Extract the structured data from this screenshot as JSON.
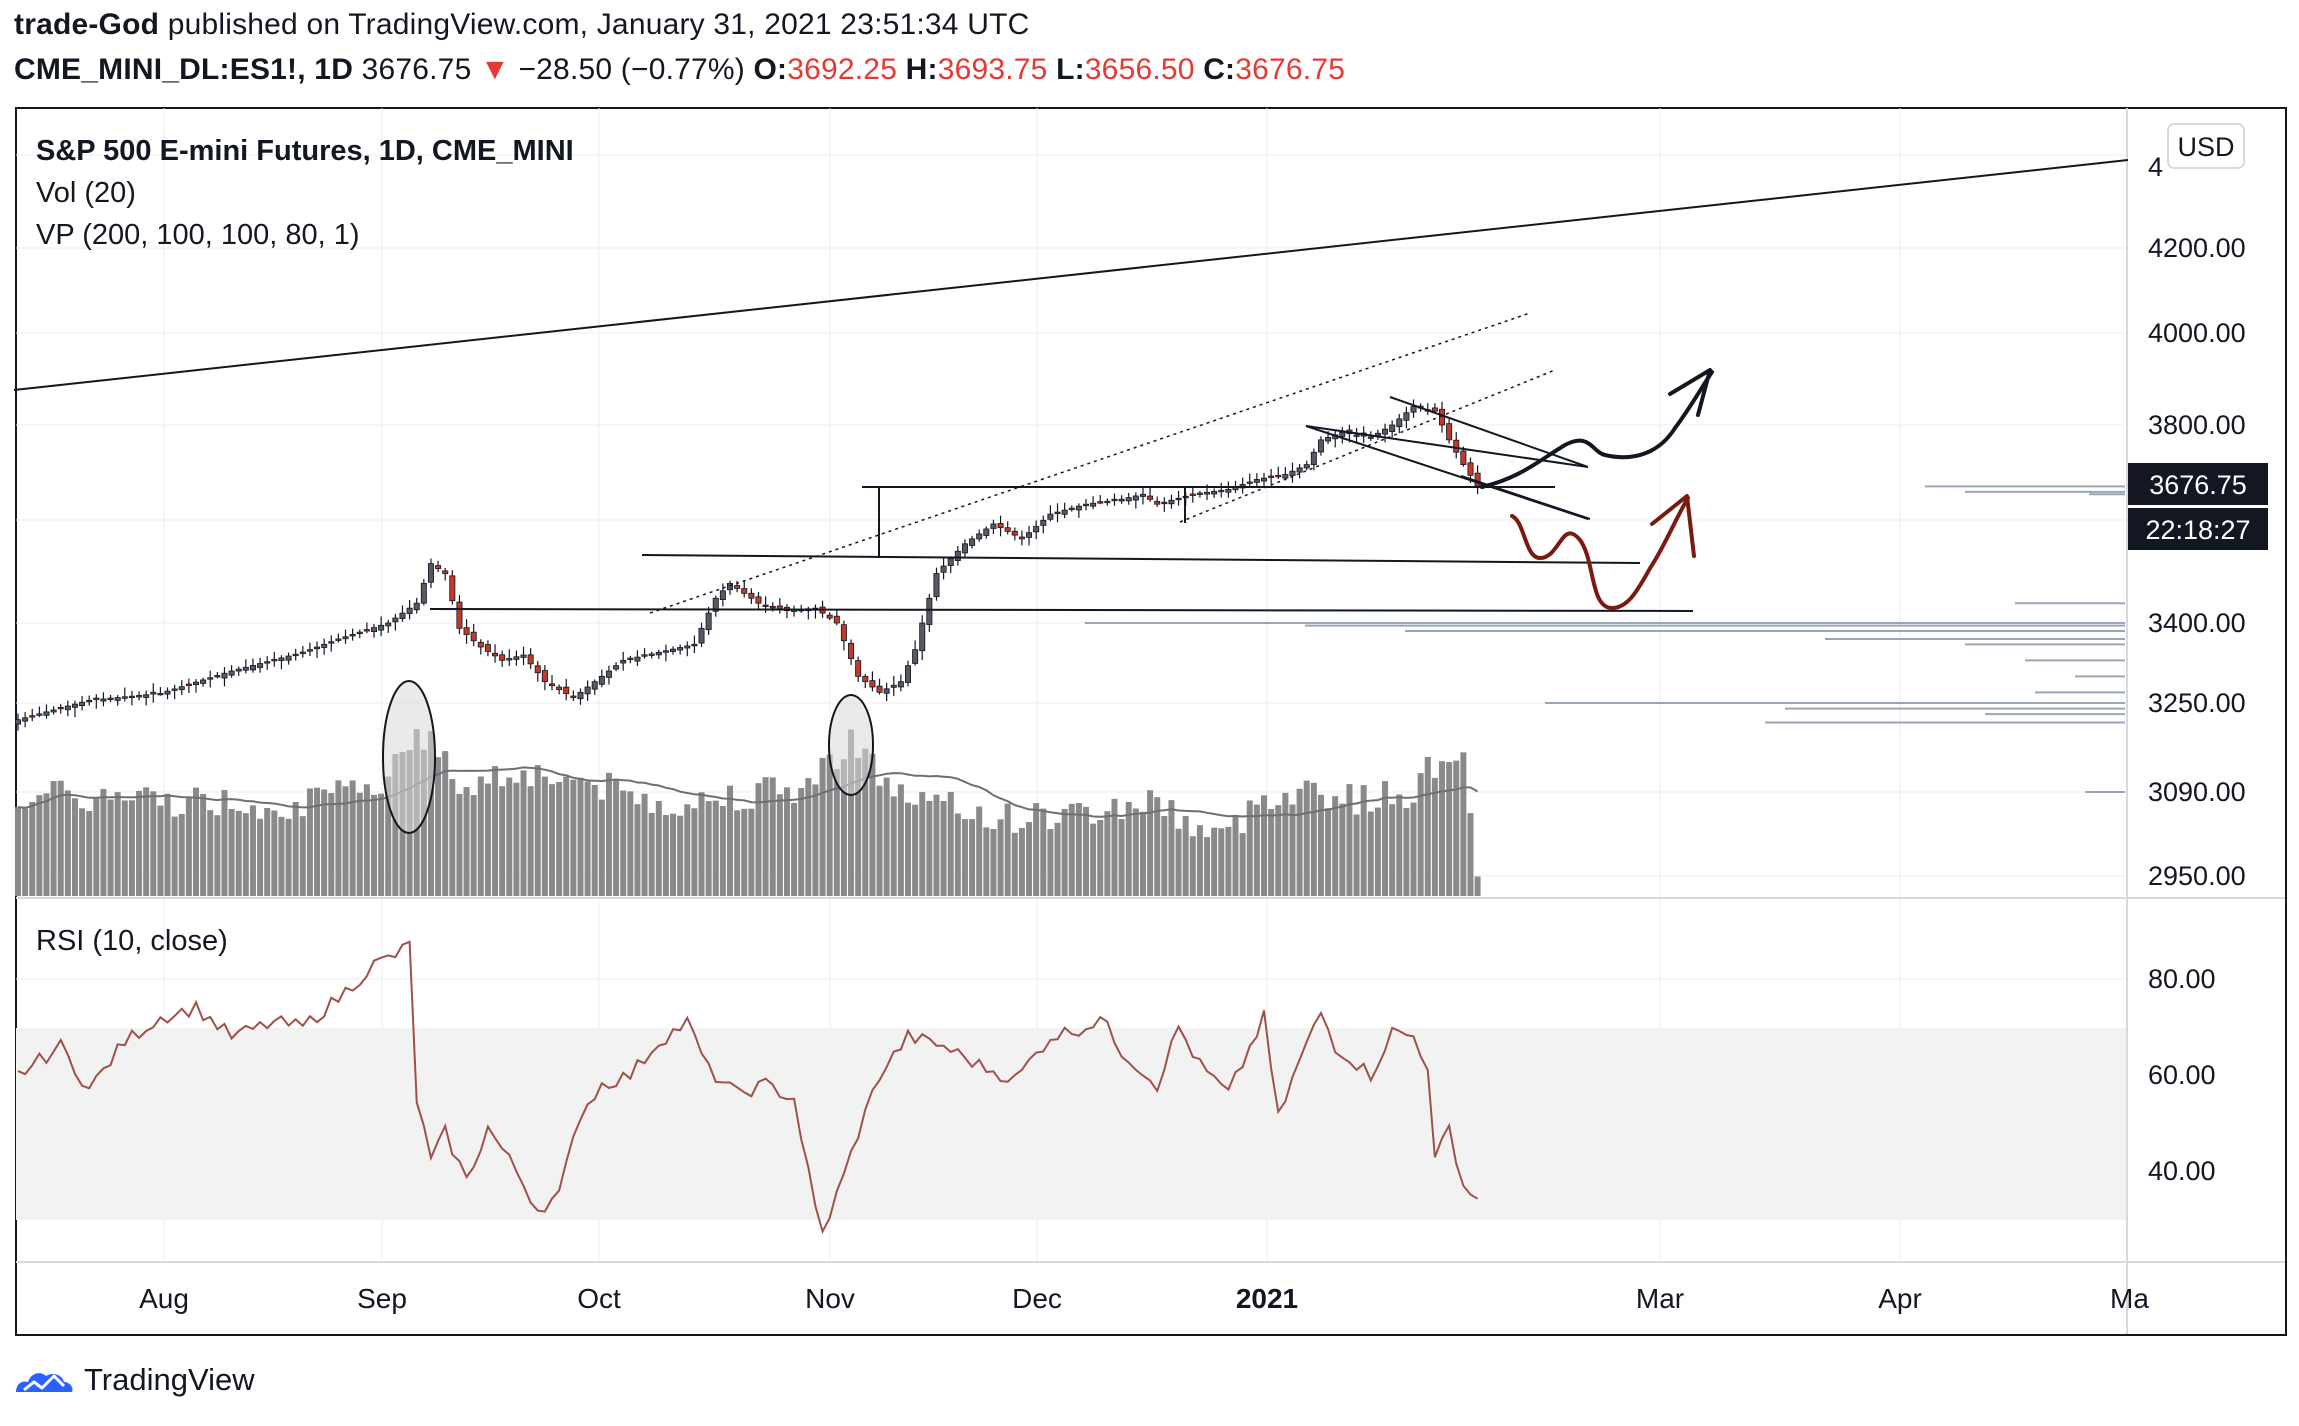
{
  "header": {
    "author": "trade-God",
    "published": "published on TradingView.com, January 31, 2021 23:51:34 UTC",
    "symbol": "CME_MINI_DL:ES1!, 1D",
    "last": "3676.75",
    "arrow": "▼",
    "change": "−28.50 (−0.77%)",
    "o_label": "O:",
    "o": "3692.25",
    "h_label": "H:",
    "h": "3693.75",
    "l_label": "L:",
    "l": "3656.50",
    "c_label": "C:",
    "c": "3676.75"
  },
  "legend": {
    "title": "S&P 500 E-mini Futures, 1D, CME_MINI",
    "vol": "Vol (20)",
    "vp": "VP (200, 100, 100, 80, 1)",
    "rsi": "RSI (10, close)"
  },
  "currency": "USD",
  "price_label": "3676.75",
  "countdown": "22:18:27",
  "footer": {
    "brand": "TradingView"
  },
  "colors": {
    "up": "#434651",
    "down": "#c0392b",
    "rsi": "#a0504a",
    "vp": "#9aa6b8",
    "drawing_red": "#7b1a10"
  },
  "chart_data": {
    "type": "candlestick",
    "title": "S&P 500 E-mini Futures, 1D, CME_MINI",
    "price_axis_ticks": [
      4200,
      4000,
      3800,
      3400,
      3250,
      3090,
      2950
    ],
    "price_axis_labels": [
      "4200.00",
      "4000.00",
      "3800.00",
      "3400.00",
      "3250.00",
      "3090.00",
      "2950.00"
    ],
    "rsi_axis_ticks": [
      80,
      60,
      40
    ],
    "rsi_axis_labels": [
      "80.00",
      "60.00",
      "40.00"
    ],
    "rsi_band": [
      30,
      70
    ],
    "x_labels": [
      "Aug",
      "Sep",
      "Oct",
      "Nov",
      "Dec",
      "2021",
      "Mar",
      "Apr",
      "Ma"
    ],
    "price_anchors": [
      [
        0,
        3220
      ],
      [
        10,
        3255
      ],
      [
        20,
        3268
      ],
      [
        30,
        3310
      ],
      [
        40,
        3345
      ],
      [
        45,
        3370
      ],
      [
        52,
        3400
      ],
      [
        56,
        3440
      ],
      [
        58,
        3520
      ],
      [
        60,
        3500
      ],
      [
        62,
        3390
      ],
      [
        65,
        3355
      ],
      [
        68,
        3330
      ],
      [
        71,
        3340
      ],
      [
        74,
        3290
      ],
      [
        78,
        3260
      ],
      [
        82,
        3300
      ],
      [
        85,
        3330
      ],
      [
        90,
        3345
      ],
      [
        95,
        3360
      ],
      [
        98,
        3450
      ],
      [
        100,
        3480
      ],
      [
        104,
        3440
      ],
      [
        108,
        3425
      ],
      [
        112,
        3430
      ],
      [
        115,
        3400
      ],
      [
        118,
        3300
      ],
      [
        121,
        3270
      ],
      [
        124,
        3290
      ],
      [
        126,
        3350
      ],
      [
        129,
        3500
      ],
      [
        133,
        3560
      ],
      [
        137,
        3600
      ],
      [
        141,
        3570
      ],
      [
        145,
        3620
      ],
      [
        150,
        3640
      ],
      [
        155,
        3650
      ],
      [
        158,
        3660
      ],
      [
        160,
        3640
      ],
      [
        165,
        3660
      ],
      [
        170,
        3670
      ],
      [
        174,
        3690
      ],
      [
        178,
        3700
      ],
      [
        181,
        3720
      ],
      [
        183,
        3770
      ],
      [
        186,
        3785
      ],
      [
        190,
        3775
      ],
      [
        193,
        3800
      ],
      [
        196,
        3840
      ],
      [
        199,
        3830
      ],
      [
        201,
        3770
      ],
      [
        203,
        3720
      ],
      [
        205,
        3676.75
      ]
    ],
    "volume_anchors": [
      [
        0,
        0.55
      ],
      [
        20,
        0.52
      ],
      [
        40,
        0.5
      ],
      [
        50,
        0.58
      ],
      [
        56,
        0.92
      ],
      [
        60,
        0.72
      ],
      [
        62,
        0.6
      ],
      [
        70,
        0.68
      ],
      [
        80,
        0.62
      ],
      [
        88,
        0.52
      ],
      [
        95,
        0.5
      ],
      [
        100,
        0.55
      ],
      [
        110,
        0.58
      ],
      [
        114,
        0.72
      ],
      [
        117,
        0.88
      ],
      [
        120,
        0.7
      ],
      [
        124,
        0.55
      ],
      [
        130,
        0.48
      ],
      [
        140,
        0.42
      ],
      [
        150,
        0.45
      ],
      [
        160,
        0.52
      ],
      [
        165,
        0.38
      ],
      [
        170,
        0.32
      ],
      [
        175,
        0.55
      ],
      [
        182,
        0.58
      ],
      [
        188,
        0.52
      ],
      [
        195,
        0.55
      ],
      [
        200,
        0.75
      ],
      [
        203,
        0.82
      ],
      [
        205,
        0.05
      ]
    ],
    "rsi_anchors": [
      [
        0,
        60
      ],
      [
        6,
        66
      ],
      [
        10,
        57
      ],
      [
        15,
        67
      ],
      [
        20,
        72
      ],
      [
        25,
        74
      ],
      [
        30,
        68
      ],
      [
        36,
        71
      ],
      [
        40,
        70
      ],
      [
        45,
        76
      ],
      [
        50,
        83
      ],
      [
        53,
        85
      ],
      [
        55,
        87
      ],
      [
        56,
        55
      ],
      [
        58,
        42
      ],
      [
        60,
        48
      ],
      [
        63,
        38
      ],
      [
        66,
        49
      ],
      [
        70,
        40
      ],
      [
        73,
        32
      ],
      [
        76,
        35
      ],
      [
        79,
        52
      ],
      [
        82,
        58
      ],
      [
        86,
        60
      ],
      [
        90,
        67
      ],
      [
        94,
        71
      ],
      [
        97,
        61
      ],
      [
        101,
        56
      ],
      [
        105,
        58
      ],
      [
        109,
        55
      ],
      [
        112,
        32
      ],
      [
        113,
        27
      ],
      [
        116,
        39
      ],
      [
        118,
        48
      ],
      [
        121,
        60
      ],
      [
        125,
        68
      ],
      [
        130,
        66
      ],
      [
        135,
        62
      ],
      [
        140,
        59
      ],
      [
        145,
        68
      ],
      [
        150,
        70
      ],
      [
        152,
        72
      ],
      [
        155,
        65
      ],
      [
        160,
        58
      ],
      [
        163,
        70
      ],
      [
        166,
        62
      ],
      [
        170,
        56
      ],
      [
        175,
        72
      ],
      [
        177,
        51
      ],
      [
        180,
        63
      ],
      [
        183,
        73
      ],
      [
        185,
        66
      ],
      [
        190,
        60
      ],
      [
        193,
        69
      ],
      [
        196,
        68
      ],
      [
        198,
        62
      ],
      [
        199,
        42
      ],
      [
        201,
        49
      ],
      [
        203,
        37
      ],
      [
        205,
        34
      ]
    ],
    "horizontal_levels": [
      3660,
      3545,
      3425
    ],
    "annotations": [
      "two ellipses highlighting volume spikes (early Sep, late Oct)",
      "black hand-drawn arrow pointing up",
      "dark red hand-drawn arrow dipping then pointing up",
      "rising dotted channel",
      "descending wedge lines"
    ]
  }
}
